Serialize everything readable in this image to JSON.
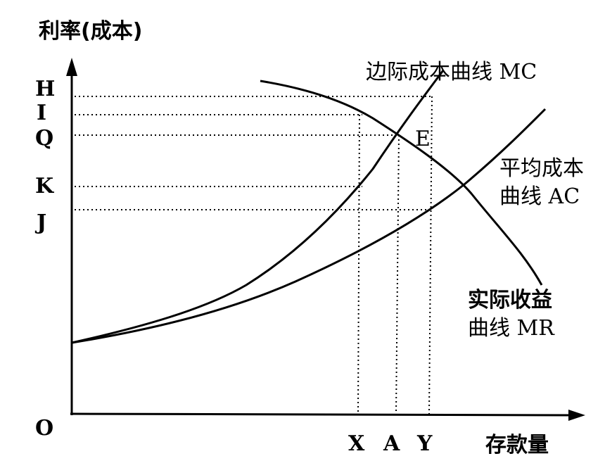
{
  "y_axis_label": "利率(成本)",
  "x_axis_label": "存款量",
  "origin_label": "O",
  "y_ticks": [
    "H",
    "I",
    "Q",
    "K",
    "J"
  ],
  "x_ticks": [
    "X",
    "A",
    "Y"
  ],
  "curves": {
    "mc": {
      "label": "边际成本曲线 MC"
    },
    "ac": {
      "label_line1": "平均成本",
      "label_line2": "曲线 AC"
    },
    "mr": {
      "label_line1": "实际收益",
      "label_line2": "曲线 MR"
    }
  },
  "point_e": "E"
}
